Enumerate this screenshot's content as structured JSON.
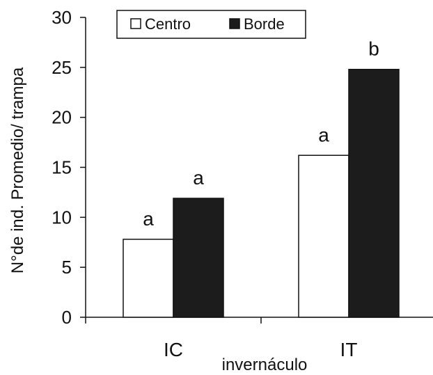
{
  "chart_data": {
    "type": "bar",
    "title": "",
    "xlabel": "invernáculo",
    "ylabel": "N°de ind. Promedio/ trampa",
    "ylim": [
      0,
      30
    ],
    "yticks": [
      0,
      5,
      10,
      15,
      20,
      25,
      30
    ],
    "grid": false,
    "legend_position": "top-left",
    "categories": [
      "IC",
      "IT"
    ],
    "series": [
      {
        "name": "Centro",
        "values": [
          7.8,
          16.2
        ],
        "fill": "#ffffff",
        "stroke": "#111111",
        "annotations": [
          "a",
          "a"
        ]
      },
      {
        "name": "Borde",
        "values": [
          11.9,
          24.8
        ],
        "fill": "#1c1c1c",
        "stroke": "#111111",
        "annotations": [
          "a",
          "b"
        ]
      }
    ]
  }
}
